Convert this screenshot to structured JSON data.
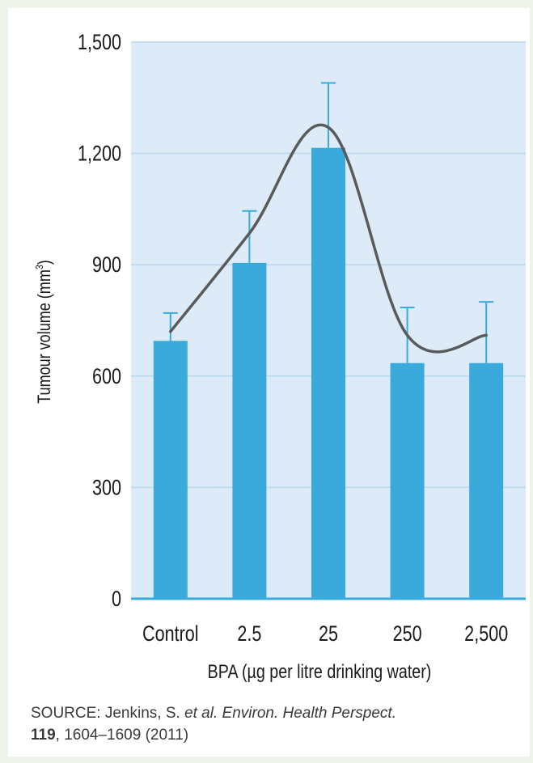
{
  "chart_data": {
    "type": "bar",
    "title": "",
    "ylabel": "Tumour volume (mm",
    "ylabel_sup": "3",
    "ylabel_close": ")",
    "xlabel": "BPA (µg per litre drinking water)",
    "categories": [
      "Control",
      "2.5",
      "25",
      "250",
      "2,500"
    ],
    "values": [
      695,
      905,
      1215,
      635,
      635
    ],
    "error_upper": [
      770,
      1045,
      1390,
      785,
      800
    ],
    "trend_line": [
      720,
      985,
      1270,
      710,
      710
    ],
    "ylim": [
      0,
      1500
    ],
    "yticks": [
      0,
      300,
      600,
      900,
      1200,
      1500
    ],
    "ytick_labels": [
      "0",
      "300",
      "600",
      "900",
      "1,200",
      "1,500"
    ],
    "grid": true,
    "colors": {
      "bar": "#3aa9dc",
      "plot_bg": "#dcebf7",
      "grid": "#b9d8ee",
      "trend": "#5a5a5a",
      "axis": "#3aa9dc"
    }
  },
  "source": {
    "prefix": "SOURCE: Jenkins, S. ",
    "italic_part": "et al. Environ. Health Perspect.",
    "volume": "119",
    "rest": ", 1604–1609 (2011)"
  }
}
